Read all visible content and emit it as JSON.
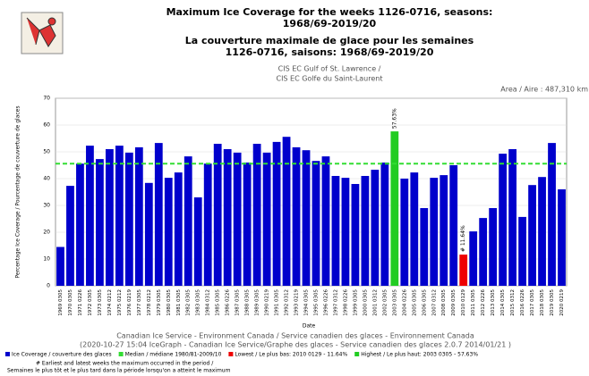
{
  "chart_data": {
    "type": "bar",
    "title_lines": [
      "Maximum Ice Coverage for the weeks 1126-0716, seasons:",
      "1968/69-2019/20"
    ],
    "subtitle_lines": [
      "La couverture maximale de glace pour les semaines",
      "1126-0716, saisons: 1968/69-2019/20"
    ],
    "region_lines": [
      "CIS EC Gulf of St. Lawrence /",
      "CIS EC Golfe du Saint-Laurent"
    ],
    "area_text": "Area / Aire : 487,310 km",
    "y_label": "Percentage Ice Coverage / Pourcentage de couverture de glaces",
    "x_label": "Date",
    "categories": [
      "1969 0305",
      "1970 0305",
      "1971 0226",
      "1972 0305",
      "1973 0305",
      "1974 0212",
      "1975 0212",
      "1976 0219",
      "1977 0305",
      "1978 0212",
      "1979 0305",
      "1980 0305",
      "1981 0305",
      "1982 0305",
      "1983 0305",
      "1984 0312",
      "1985 0305",
      "1986 0226",
      "1987 0305",
      "1988 0305",
      "1989 0305",
      "1990 0219",
      "1991 0305",
      "1992 0312",
      "1993 0219",
      "1994 0305",
      "1995 0305",
      "1996 0226",
      "1997 0312",
      "1998 0226",
      "1999 0305",
      "2000 0305",
      "2001 0312",
      "2002 0305",
      "2003 0305",
      "2004 0226",
      "2005 0305",
      "2006 0305",
      "2007 0312",
      "2008 0305",
      "2009 0305",
      "2010 0129",
      "2011 0305",
      "2012 0226",
      "2013 0305",
      "2014 0305",
      "2015 0312",
      "2016 0226",
      "2017 0305",
      "2018 0305",
      "2019 0305",
      "2020 0219"
    ],
    "values": [
      14.5,
      37.3,
      45.6,
      52.3,
      47.3,
      51,
      52.3,
      49.7,
      51.7,
      38.4,
      53.3,
      40.3,
      42.3,
      48.3,
      33,
      45.6,
      53,
      51,
      49.7,
      46,
      53,
      49.7,
      53.7,
      55.6,
      51.7,
      50.6,
      46.6,
      48.3,
      41,
      40.3,
      38,
      41,
      43.3,
      46,
      57.63,
      40,
      42.3,
      29,
      40.3,
      41.3,
      45,
      11.64,
      20.3,
      25.3,
      29,
      49.3,
      51,
      25.7,
      37.6,
      40.6,
      53.3,
      36
    ],
    "value_labels": [
      null,
      null,
      null,
      null,
      null,
      null,
      null,
      null,
      null,
      null,
      null,
      null,
      null,
      null,
      null,
      null,
      null,
      null,
      null,
      null,
      null,
      null,
      null,
      null,
      null,
      null,
      null,
      null,
      null,
      null,
      null,
      null,
      null,
      null,
      "57.63%",
      null,
      null,
      null,
      null,
      null,
      null,
      "# 11.64%",
      null,
      null,
      null,
      null,
      null,
      null,
      null,
      null,
      null,
      null
    ],
    "color": "#0000cc",
    "highest_color": "#22cc22",
    "lowest_color": "#ee0000",
    "median": 45.6,
    "median_color": "#33dd33",
    "ylim": [
      0,
      70
    ],
    "yticks": [
      0,
      10,
      20,
      30,
      40,
      50,
      60,
      70
    ],
    "grid": true,
    "legend": [
      "Ice Coverage / couverture des glaces",
      "Median / médiane 1980/81-2009/10",
      "Lowest / Le plus bas: 2010 0129 - 11.64%",
      "Highest / Le plus haut: 2003 0305 - 57.63%"
    ],
    "footer_lines": [
      "Canadian Ice Service - Environment Canada / Service canadien des glaces - Environnement Canada",
      "(2020-10-27 15:04 IceGraph - Canadian Ice Service/Graphe des glaces - Service canadien des glaces 2.0.7 2014/01/21 )"
    ],
    "note_lines": [
      "# Earliest and latest weeks the maximum occurred in the period /",
      "Semaines le plus tôt et le plus tard dans la période lorsqu'on a atteint le maximum"
    ]
  }
}
